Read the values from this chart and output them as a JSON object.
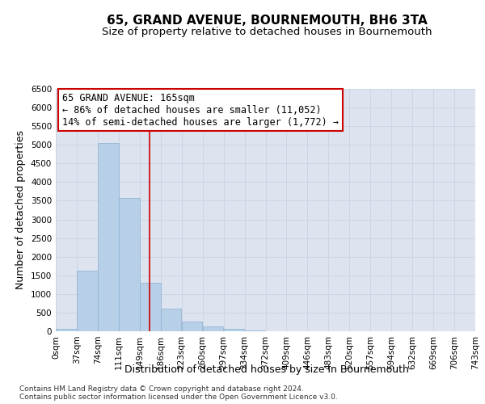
{
  "title": "65, GRAND AVENUE, BOURNEMOUTH, BH6 3TA",
  "subtitle": "Size of property relative to detached houses in Bournemouth",
  "xlabel": "Distribution of detached houses by size in Bournemouth",
  "ylabel": "Number of detached properties",
  "footnote1": "Contains HM Land Registry data © Crown copyright and database right 2024.",
  "footnote2": "Contains public sector information licensed under the Open Government Licence v3.0.",
  "annotation_title": "65 GRAND AVENUE: 165sqm",
  "annotation_line1": "← 86% of detached houses are smaller (11,052)",
  "annotation_line2": "14% of semi-detached houses are larger (1,772) →",
  "bin_starts": [
    0,
    37,
    74,
    111,
    148,
    185,
    222,
    259,
    296,
    333,
    370,
    407,
    444,
    481,
    518,
    555,
    592,
    629,
    666,
    703
  ],
  "bin_width": 37,
  "bin_labels": [
    "0sqm",
    "37sqm",
    "74sqm",
    "111sqm",
    "149sqm",
    "186sqm",
    "223sqm",
    "260sqm",
    "297sqm",
    "334sqm",
    "372sqm",
    "409sqm",
    "446sqm",
    "483sqm",
    "520sqm",
    "557sqm",
    "594sqm",
    "632sqm",
    "669sqm",
    "706sqm",
    "743sqm"
  ],
  "bar_values": [
    55,
    1620,
    5050,
    3580,
    1300,
    600,
    270,
    130,
    60,
    25,
    8,
    0,
    0,
    0,
    0,
    0,
    0,
    0,
    0,
    0
  ],
  "bar_color": "#b8cfe8",
  "bar_edge_color": "#8ab0d0",
  "vline_color": "#cc0000",
  "vline_x": 165,
  "ylim": [
    0,
    6500
  ],
  "yticks": [
    0,
    500,
    1000,
    1500,
    2000,
    2500,
    3000,
    3500,
    4000,
    4500,
    5000,
    5500,
    6000,
    6500
  ],
  "grid_color": "#ccd5e5",
  "bg_color": "#dde4f0",
  "annotation_box_color": "#ffffff",
  "annotation_border_color": "#cc0000",
  "title_fontsize": 11,
  "subtitle_fontsize": 9.5,
  "axis_label_fontsize": 9,
  "tick_fontsize": 7.5,
  "annotation_fontsize": 8.5
}
